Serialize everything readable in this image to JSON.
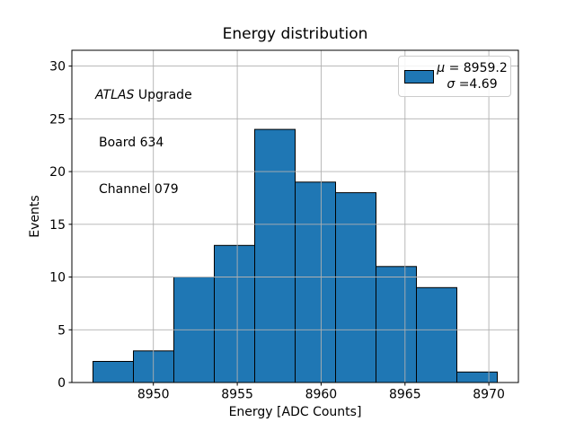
{
  "chart_data": {
    "type": "bar",
    "subtype": "histogram",
    "title": "Energy distribution",
    "xlabel": "Energy [ADC Counts]",
    "ylabel": "Events",
    "bin_edges": [
      8946.4,
      8948.81,
      8951.22,
      8953.63,
      8956.04,
      8958.45,
      8960.86,
      8963.27,
      8965.68,
      8968.09,
      8970.5
    ],
    "counts": [
      2,
      3,
      10,
      13,
      24,
      19,
      18,
      11,
      9,
      1
    ],
    "xlim": [
      8945.14,
      8971.76
    ],
    "ylim": [
      0,
      31.5
    ],
    "xticks": [
      8950,
      8955,
      8960,
      8965,
      8970
    ],
    "yticks": [
      0,
      5,
      10,
      15,
      20,
      25,
      30
    ],
    "grid": true,
    "grid_color": "#b0b0b0",
    "bar_color": "#1f77b4",
    "bar_edge_color": "#000000",
    "legend_position": "upper right",
    "legend": {
      "mu_symbol": "μ",
      "mu_text": " = 8959.2",
      "sigma_symbol": "σ",
      "sigma_text": " =4.69",
      "swatch_color": "#1f77b4"
    },
    "annotation": {
      "line1_italic": "ATLAS",
      "line1_rest": " Upgrade",
      "line2": "Board 634",
      "line3": "Channel 079"
    },
    "stats": {
      "mean": 8959.2,
      "sigma": 4.69
    }
  }
}
